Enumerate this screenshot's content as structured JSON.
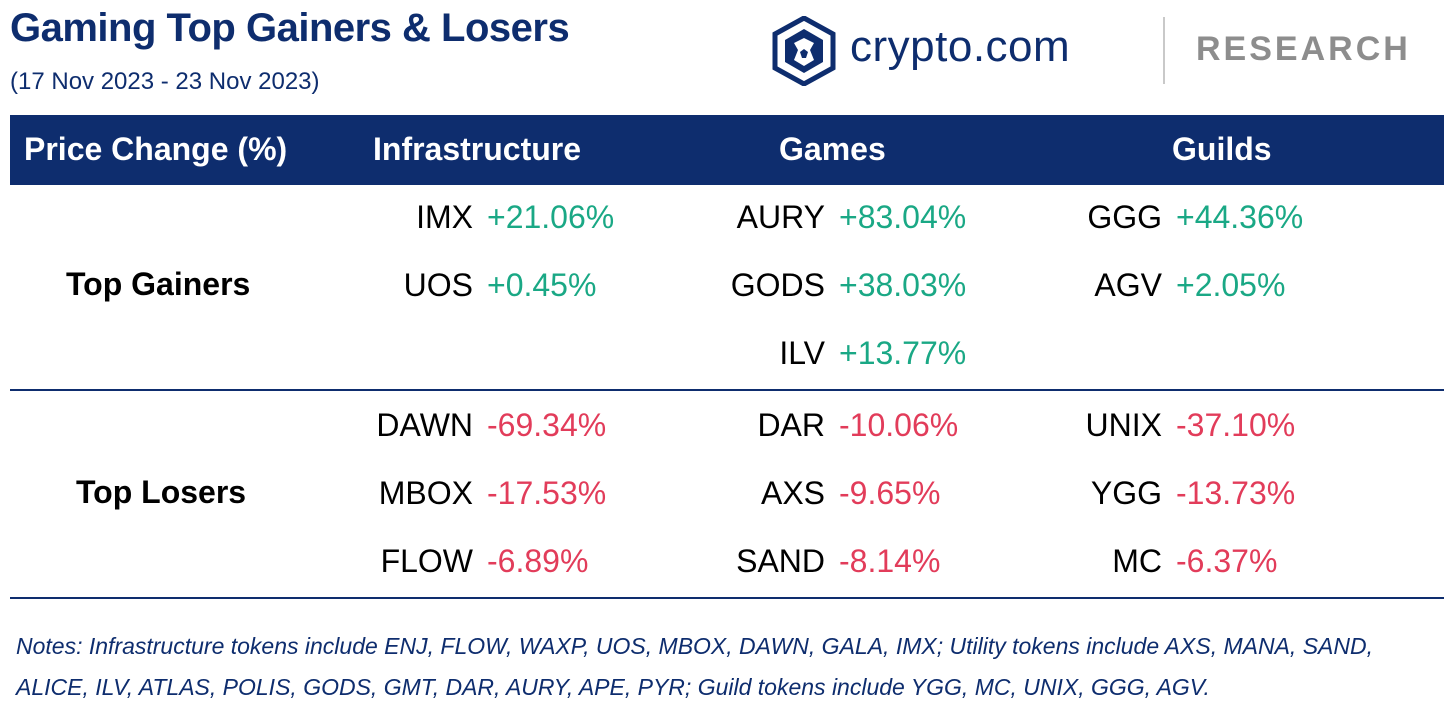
{
  "title": "Gaming Top Gainers & Losers",
  "subtitle": "(17 Nov 2023 - 23 Nov 2023)",
  "brand": {
    "logo_icon": "crypto-com-lion-shield-icon",
    "name": "crypto.com",
    "section": "RESEARCH"
  },
  "colors": {
    "navy": "#0e2d6e",
    "gain": "#1aa885",
    "loss": "#e23c5a",
    "research_gray": "#8d8d8d"
  },
  "table": {
    "headers": [
      "Price Change (%)",
      "Infrastructure",
      "Games",
      "Guilds"
    ],
    "gainers_label": "Top Gainers",
    "losers_label": "Top Losers",
    "gainers": {
      "infrastructure": [
        {
          "symbol": "IMX",
          "change": "+21.06%"
        },
        {
          "symbol": "UOS",
          "change": "+0.45%"
        }
      ],
      "games": [
        {
          "symbol": "AURY",
          "change": "+83.04%"
        },
        {
          "symbol": "GODS",
          "change": "+38.03%"
        },
        {
          "symbol": "ILV",
          "change": "+13.77%"
        }
      ],
      "guilds": [
        {
          "symbol": "GGG",
          "change": "+44.36%"
        },
        {
          "symbol": "AGV",
          "change": "+2.05%"
        }
      ]
    },
    "losers": {
      "infrastructure": [
        {
          "symbol": "DAWN",
          "change": "-69.34%"
        },
        {
          "symbol": "MBOX",
          "change": "-17.53%"
        },
        {
          "symbol": "FLOW",
          "change": "-6.89%"
        }
      ],
      "games": [
        {
          "symbol": "DAR",
          "change": "-10.06%"
        },
        {
          "symbol": "AXS",
          "change": "-9.65%"
        },
        {
          "symbol": "SAND",
          "change": "-8.14%"
        }
      ],
      "guilds": [
        {
          "symbol": "UNIX",
          "change": "-37.10%"
        },
        {
          "symbol": "YGG",
          "change": "-13.73%"
        },
        {
          "symbol": "MC",
          "change": "-6.37%"
        }
      ]
    }
  },
  "notes": "Notes: Infrastructure tokens include ENJ, FLOW, WAXP, UOS, MBOX, DAWN, GALA, IMX; Utility tokens include AXS, MANA, SAND, ALICE, ILV, ATLAS, POLIS, GODS, GMT, DAR, AURY, APE, PYR; Guild tokens include YGG, MC, UNIX, GGG, AGV."
}
